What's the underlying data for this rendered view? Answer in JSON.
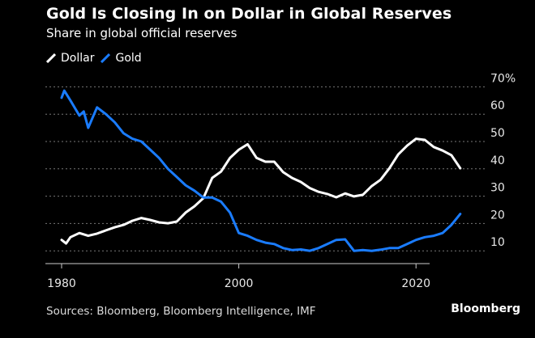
{
  "header": {
    "title": "Gold Is Closing In on Dollar in Global Reserves",
    "subtitle": "Share in global official reserves"
  },
  "footer": {
    "source": "Sources: Bloomberg, Bloomberg Intelligence, IMF",
    "brand": "Bloomberg"
  },
  "chart_data": {
    "type": "line",
    "title": "Gold Is Closing In on Dollar in Global Reserves",
    "subtitle": "Share in global official reserves",
    "xlabel": "",
    "ylabel": "",
    "x_ticks": [
      "1980",
      "2000",
      "2020"
    ],
    "x_tick_values": [
      1980,
      2000,
      2020
    ],
    "xlim": [
      1978,
      2030
    ],
    "y_ticks": [
      "10",
      "20",
      "30",
      "40",
      "50",
      "60",
      "70%"
    ],
    "y_tick_values": [
      10,
      20,
      30,
      40,
      50,
      60,
      70
    ],
    "ylim": [
      0,
      70
    ],
    "y_axis_side": "right",
    "grid": true,
    "legend_position": "top-left",
    "series": [
      {
        "name": "Dollar",
        "color": "#ffffff",
        "x": [
          1980,
          1980.5,
          1981,
          1982,
          1983,
          1984,
          1985,
          1986,
          1987,
          1988,
          1989,
          1990,
          1991,
          1992,
          1993,
          1994,
          1995,
          1996,
          1997,
          1998,
          1999,
          2000,
          2001,
          2002,
          2003,
          2004,
          2005,
          2006,
          2007,
          2008,
          2009,
          2010,
          2011,
          2012,
          2013,
          2014,
          2015,
          2016,
          2017,
          2018,
          2019,
          2020,
          2021,
          2022,
          2023,
          2024,
          2025
        ],
        "values": [
          14,
          12.7,
          15,
          16.5,
          15.5,
          16.3,
          17.5,
          18.6,
          19.5,
          21,
          22,
          21.3,
          20.4,
          20.1,
          20.7,
          24,
          26.3,
          29.3,
          36.7,
          39,
          44,
          47,
          49,
          44,
          42.6,
          42.6,
          38.8,
          36.7,
          35.2,
          33,
          31.6,
          30.8,
          29.6,
          31,
          29.9,
          30.5,
          33.7,
          36,
          40.2,
          45.3,
          48.5,
          51,
          50.6,
          48,
          46.7,
          45,
          40.2
        ]
      },
      {
        "name": "Gold",
        "color": "#1a7cff",
        "x": [
          1980,
          1980.3,
          1981,
          1982,
          1982.5,
          1983,
          1984,
          1985,
          1986,
          1987,
          1988,
          1989,
          1990,
          1991,
          1992,
          1993,
          1994,
          1995,
          1996,
          1997,
          1998,
          1999,
          2000,
          2001,
          2002,
          2003,
          2004,
          2005,
          2006,
          2007,
          2008,
          2009,
          2010,
          2011,
          2012,
          2013,
          2014,
          2015,
          2016,
          2017,
          2018,
          2019,
          2020,
          2021,
          2022,
          2023,
          2024,
          2025
        ],
        "values": [
          66,
          68.6,
          65,
          59.5,
          61,
          55,
          62.5,
          60,
          57,
          53,
          51,
          50,
          47,
          44,
          40,
          37,
          34,
          32,
          29.5,
          29.5,
          28,
          24,
          16.5,
          15.5,
          14,
          13,
          12.5,
          11,
          10.3,
          10.5,
          10,
          11,
          12.5,
          14,
          14.2,
          10,
          10.3,
          10,
          10.4,
          11,
          11,
          12.5,
          14,
          15,
          15.5,
          16.5,
          19.5,
          23.5
        ]
      }
    ]
  }
}
